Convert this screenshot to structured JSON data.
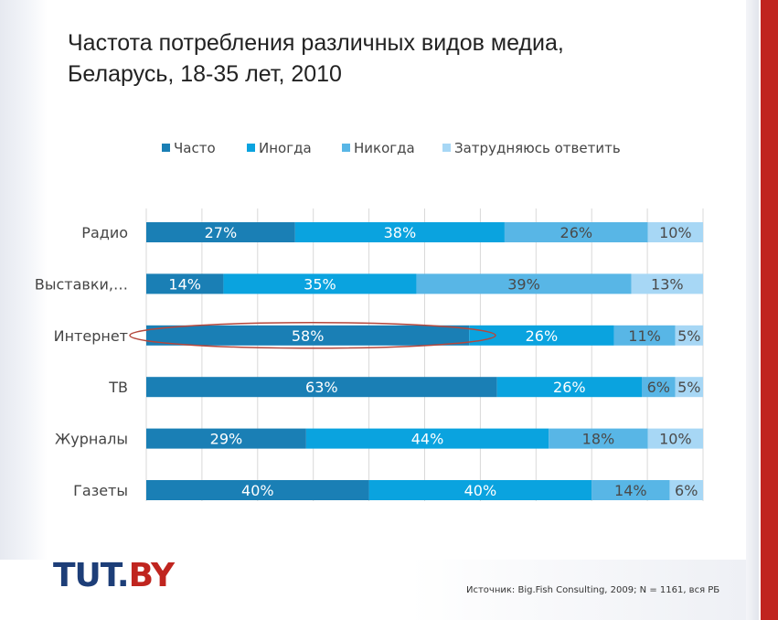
{
  "title": {
    "line1": "Частота потребления различных видов медиа,",
    "line2": "Беларусь, 18-35 лет, 2010"
  },
  "colors": {
    "often": "#1a7fb5",
    "sometimes": "#0aa3df",
    "never": "#58b6e6",
    "hard_to_say": "#a7d7f5",
    "highlight_ellipse": "#b5473c",
    "brand_blue": "#1d3e78",
    "brand_red": "#c0251f"
  },
  "chart_data": {
    "type": "bar",
    "orientation": "horizontal",
    "stacked": true,
    "legend_position": "top",
    "categories": [
      "Радио",
      "Выставки,…",
      "Интернет",
      "ТВ",
      "Журналы",
      "Газеты"
    ],
    "series": [
      {
        "name": "Часто",
        "values": [
          27,
          14,
          58,
          63,
          29,
          40
        ]
      },
      {
        "name": "Иногда",
        "values": [
          38,
          35,
          26,
          26,
          44,
          40
        ]
      },
      {
        "name": "Никогда",
        "values": [
          26,
          39,
          11,
          6,
          18,
          14
        ]
      },
      {
        "name": "Затрудняюсь ответить",
        "values": [
          10,
          13,
          5,
          5,
          10,
          6
        ]
      }
    ],
    "value_suffix": "%",
    "highlighted_category": "Интернет",
    "gridlines": true
  },
  "logo": {
    "part1": "TUT.",
    "part2": "BY"
  },
  "source": "Источник: Big.Fish Consulting, 2009; N = 1161, вся РБ"
}
